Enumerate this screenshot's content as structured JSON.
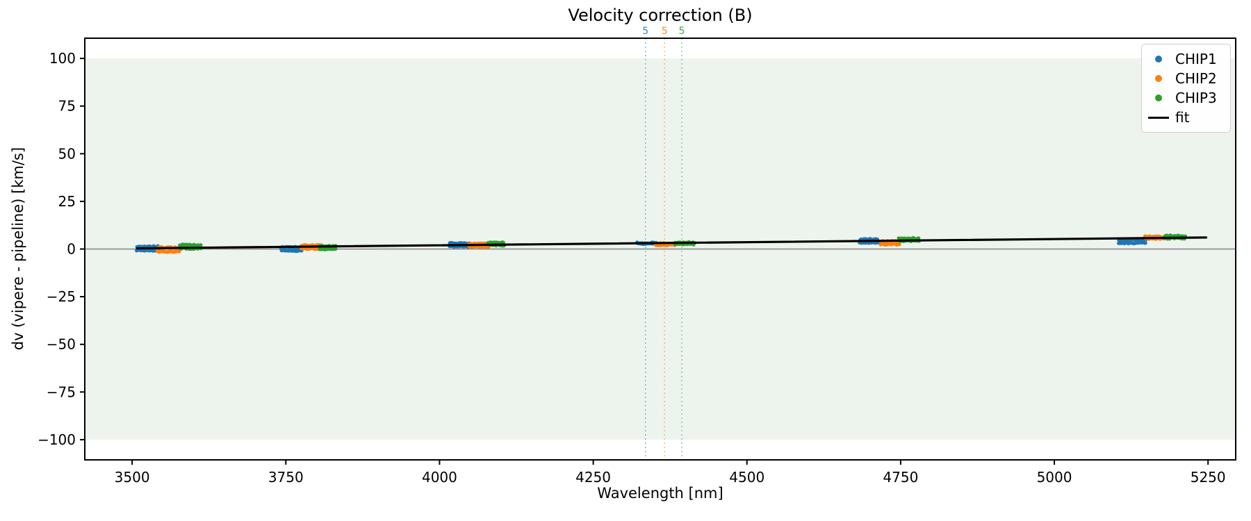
{
  "chart_data": {
    "type": "scatter",
    "title": "Velocity correction (B)",
    "xlabel": "Wavelength [nm]",
    "ylabel": "dv (vipere - pipeline) [km/s]",
    "xlim": [
      3423,
      5295
    ],
    "ylim": [
      -110.6,
      110.6
    ],
    "xticks": [
      3500,
      3750,
      4000,
      4250,
      4500,
      4750,
      5000,
      5250
    ],
    "yticks": [
      -100,
      -75,
      -50,
      -25,
      0,
      25,
      50,
      75,
      100
    ],
    "grid": false,
    "legend_position": "top-right",
    "background_band": {
      "ymin": -100,
      "ymax": 100,
      "color": "#edf4ee"
    },
    "zero_line": {
      "y": 0,
      "color": "#808080"
    },
    "vlines": [
      {
        "x": 4335,
        "label": "5",
        "color": "#1f77b4"
      },
      {
        "x": 4366,
        "label": "5",
        "color": "#ff7f0e"
      },
      {
        "x": 4394,
        "label": "5",
        "color": "#2ca02c"
      }
    ],
    "fit_line": {
      "x": [
        3508,
        5247
      ],
      "y": [
        0.35,
        6.05
      ],
      "color": "#000000"
    },
    "legend": [
      {
        "label": "CHIP1",
        "marker": "dot",
        "color": "#1f77b4"
      },
      {
        "label": "CHIP2",
        "marker": "dot",
        "color": "#ff7f0e"
      },
      {
        "label": "CHIP3",
        "marker": "dot",
        "color": "#2ca02c"
      },
      {
        "label": "fit",
        "marker": "line",
        "color": "#000000"
      }
    ],
    "series": [
      {
        "name": "CHIP1",
        "color": "#1f77b4",
        "clusters": [
          {
            "x_range": [
              3508,
              3542
            ],
            "dv_rows": [
              1.3,
              -0.7
            ],
            "points_per_row": 16
          },
          {
            "x_range": [
              3742,
              3776
            ],
            "dv_rows": [
              0.9,
              -0.8
            ],
            "points_per_row": 16
          },
          {
            "x_range": [
              4016,
              4048
            ],
            "dv_rows": [
              3.0,
              1.5
            ],
            "points_per_row": 15
          },
          {
            "x_range": [
              4322,
              4352
            ],
            "dv_rows": [
              3.2,
              2.8
            ],
            "points_per_row": 14
          },
          {
            "x_range": [
              4684,
              4712
            ],
            "dv_rows": [
              5.1,
              3.4
            ],
            "points_per_row": 14
          },
          {
            "x_range": [
              5105,
              5148
            ],
            "dv_rows": [
              4.9,
              3.2
            ],
            "points_per_row": 20
          }
        ]
      },
      {
        "name": "CHIP2",
        "color": "#ff7f0e",
        "clusters": [
          {
            "x_range": [
              3542,
              3576
            ],
            "dv_rows": [
              0.8,
              -1.3
            ],
            "points_per_row": 16
          },
          {
            "x_range": [
              3776,
              3806
            ],
            "dv_rows": [
              1.9,
              0.2
            ],
            "points_per_row": 14
          },
          {
            "x_range": [
              4048,
              4080
            ],
            "dv_rows": [
              2.8,
              1.2
            ],
            "points_per_row": 15
          },
          {
            "x_range": [
              4352,
              4382
            ],
            "dv_rows": [
              2.9,
              2.1
            ],
            "points_per_row": 14
          },
          {
            "x_range": [
              4718,
              4748
            ],
            "dv_rows": [
              4.0,
              2.5
            ],
            "points_per_row": 14
          },
          {
            "x_range": [
              5148,
              5178
            ],
            "dv_rows": [
              6.5,
              5.5
            ],
            "points_per_row": 14
          }
        ]
      },
      {
        "name": "CHIP3",
        "color": "#2ca02c",
        "clusters": [
          {
            "x_range": [
              3577,
              3611
            ],
            "dv_rows": [
              2.1,
              0.3
            ],
            "points_per_row": 16
          },
          {
            "x_range": [
              3806,
              3830
            ],
            "dv_rows": [
              1.5,
              -0.1
            ],
            "points_per_row": 12
          },
          {
            "x_range": [
              4080,
              4104
            ],
            "dv_rows": [
              3.3,
              2.0
            ],
            "points_per_row": 12
          },
          {
            "x_range": [
              4384,
              4414
            ],
            "dv_rows": [
              3.4,
              2.6
            ],
            "points_per_row": 14
          },
          {
            "x_range": [
              4748,
              4779
            ],
            "dv_rows": [
              5.6,
              4.3
            ],
            "points_per_row": 14
          },
          {
            "x_range": [
              5180,
              5212
            ],
            "dv_rows": [
              6.9,
              5.7
            ],
            "points_per_row": 15
          }
        ]
      }
    ]
  }
}
